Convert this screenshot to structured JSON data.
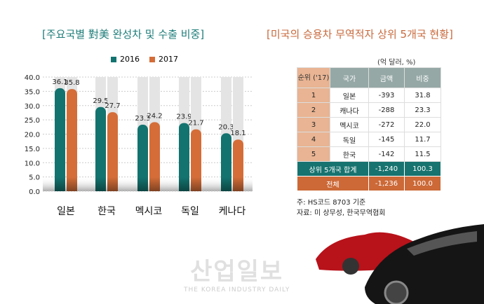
{
  "chart_data": {
    "type": "bar",
    "title": "[주요국별 對美 완성차 및 수출 비중]",
    "categories": [
      "일본",
      "한국",
      "멕시코",
      "독일",
      "케나다"
    ],
    "series": [
      {
        "name": "2016",
        "color": "#13736f",
        "values": [
          36.1,
          29.5,
          23.3,
          23.9,
          20.3
        ]
      },
      {
        "name": "2017",
        "color": "#d46d38",
        "values": [
          35.8,
          27.7,
          24.2,
          21.7,
          18.1
        ]
      }
    ],
    "ylim": [
      0,
      40
    ],
    "yticks": [
      "0.0",
      "5.0",
      "10.0",
      "15.0",
      "20.0",
      "25.0",
      "30.0",
      "35.0",
      "40.0"
    ],
    "grid": true,
    "legend": "top"
  },
  "table": {
    "title": "[미국의 승용차 무역적자 상위 5개국 현황]",
    "unit": "(억 달러, %)",
    "headers": [
      "순위 ('17)",
      "국가",
      "금액",
      "비중"
    ],
    "rows": [
      [
        "1",
        "일본",
        "-393",
        "31.8"
      ],
      [
        "2",
        "캐나다",
        "-288",
        "23.3"
      ],
      [
        "3",
        "멕시코",
        "-272",
        "22.0"
      ],
      [
        "4",
        "독일",
        "-145",
        "11.7"
      ],
      [
        "5",
        "한국",
        "-142",
        "11.5"
      ]
    ],
    "sum": [
      "상위 5개국 합계",
      "-1,240",
      "100.3"
    ],
    "total": [
      "전체",
      "-1,236",
      "100.0"
    ],
    "note": "주: HS코드 8703 기준",
    "source": "자료: 미 상무성, 한국무역협회"
  },
  "watermark": {
    "name": "산업일보",
    "sub": "THE KOREA INDUSTRY DAILY"
  }
}
